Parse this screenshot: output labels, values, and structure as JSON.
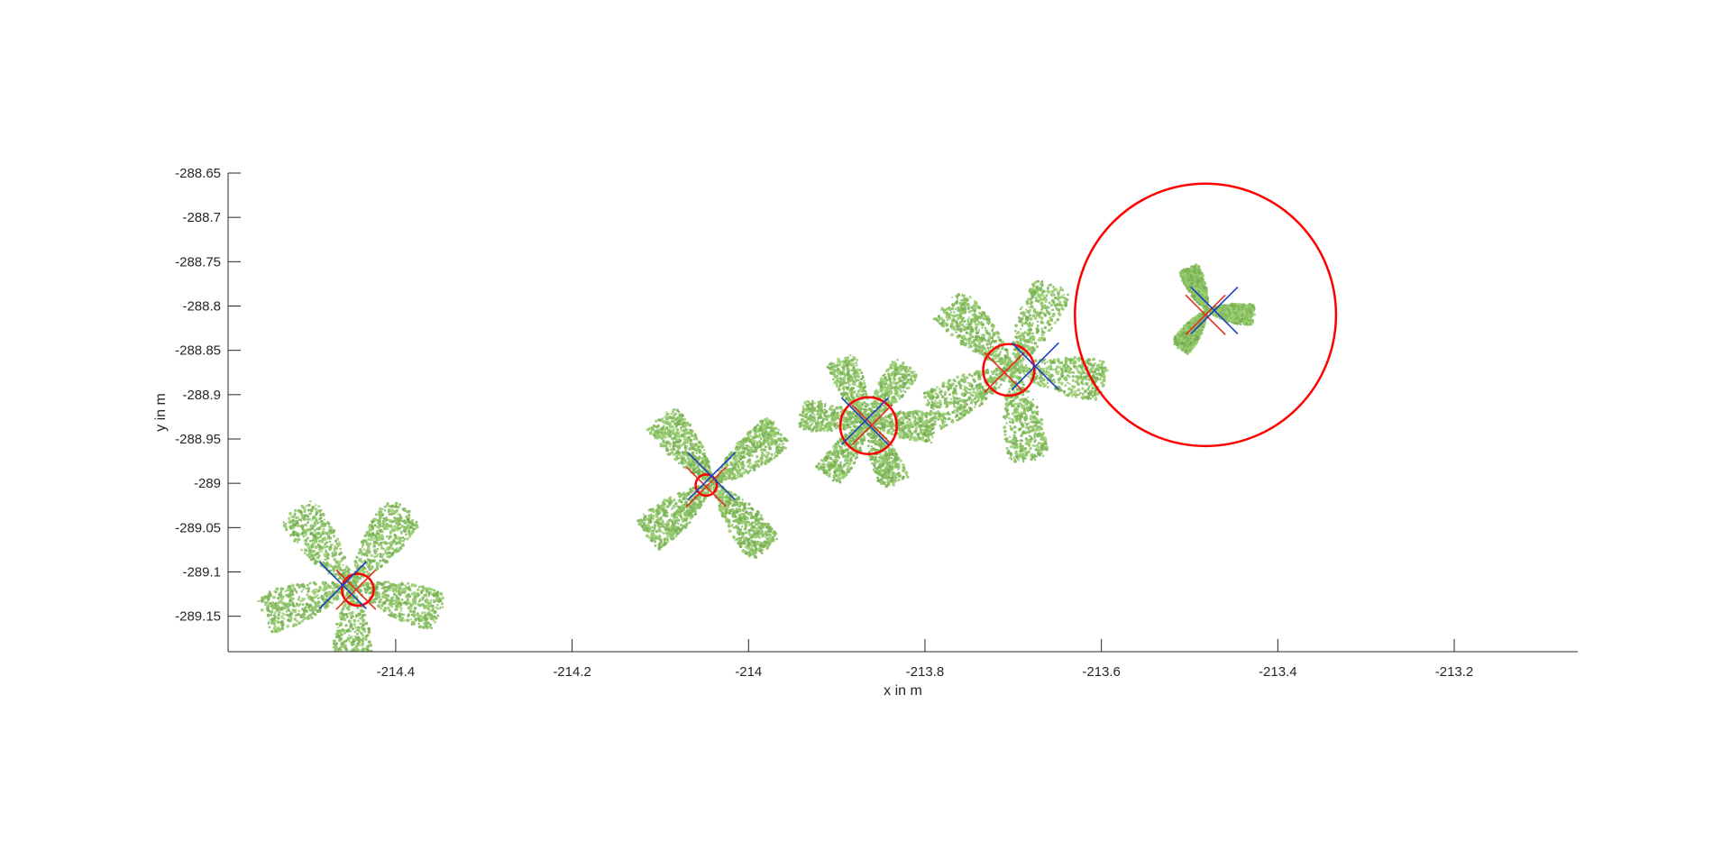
{
  "chart_data": {
    "type": "scatter",
    "title": "",
    "xlabel": "x in m",
    "ylabel": "y in m",
    "xlim": [
      -214.59,
      -213.06
    ],
    "ylim": [
      -289.19,
      -288.65
    ],
    "xticks": [
      -214.4,
      -214.2,
      -214,
      -213.8,
      -213.6,
      -213.4,
      -213.2
    ],
    "xtick_labels": [
      "-214.4",
      "-214.2",
      "-214",
      "-213.8",
      "-213.6",
      "-213.4",
      "-213.2"
    ],
    "yticks": [
      -288.65,
      -288.7,
      -288.75,
      -288.8,
      -288.85,
      -288.9,
      -288.95,
      -289,
      -289.05,
      -289.1,
      -289.15
    ],
    "ytick_labels": [
      "-288.65",
      "-288.7",
      "-288.75",
      "-288.8",
      "-288.85",
      "-288.9",
      "-288.95",
      "-289",
      "-289.05",
      "-289.1",
      "-289.15"
    ],
    "grid": false,
    "box": false,
    "colors": {
      "plant_dark": "#5f9a3a",
      "plant_light": "#a3d67c",
      "circle": "#ff0000",
      "cross_red": "#e03020",
      "cross_blue": "#1f3fbf",
      "axis": "#262626"
    },
    "plants": [
      {
        "name": "plant-1",
        "center": [
          -214.45,
          -289.115
        ],
        "radius": 0.11,
        "leaves": 5,
        "phase": 0.3,
        "circle": {
          "center": [
            -214.443,
            -289.12
          ],
          "radius": 0.018
        },
        "red_cross": [
          -214.445,
          -289.12
        ],
        "blue_cross": [
          -214.46,
          -289.115
        ]
      },
      {
        "name": "plant-2",
        "center": [
          -214.04,
          -289.0
        ],
        "radius": 0.1,
        "leaves": 4,
        "phase": 0.9,
        "circle": {
          "center": [
            -214.048,
            -289.002
          ],
          "radius": 0.012
        },
        "red_cross": [
          -214.048,
          -289.004
        ],
        "blue_cross": [
          -214.042,
          -288.992
        ]
      },
      {
        "name": "plant-3",
        "center": [
          -213.865,
          -288.93
        ],
        "radius": 0.08,
        "leaves": 6,
        "phase": 0.1,
        "circle": {
          "center": [
            -213.864,
            -288.935
          ],
          "radius": 0.032
        },
        "red_cross": [
          -213.86,
          -288.934
        ],
        "blue_cross": [
          -213.868,
          -288.93
        ]
      },
      {
        "name": "plant-4",
        "center": [
          -213.7,
          -288.87
        ],
        "radius": 0.11,
        "leaves": 5,
        "phase": 1.4,
        "circle": {
          "center": [
            -213.705,
            -288.872
          ],
          "radius": 0.029
        },
        "red_cross": [
          -213.71,
          -288.875
        ],
        "blue_cross": [
          -213.675,
          -288.868
        ]
      },
      {
        "name": "plant-5",
        "center": [
          -213.48,
          -288.805
        ],
        "radius": 0.055,
        "leaves": 3,
        "phase": 2.2,
        "circle": {
          "center": [
            -213.482,
            -288.81
          ],
          "radius": 0.148
        },
        "red_cross": [
          -213.482,
          -288.81
        ],
        "blue_cross": [
          -213.472,
          -288.805
        ]
      }
    ]
  }
}
